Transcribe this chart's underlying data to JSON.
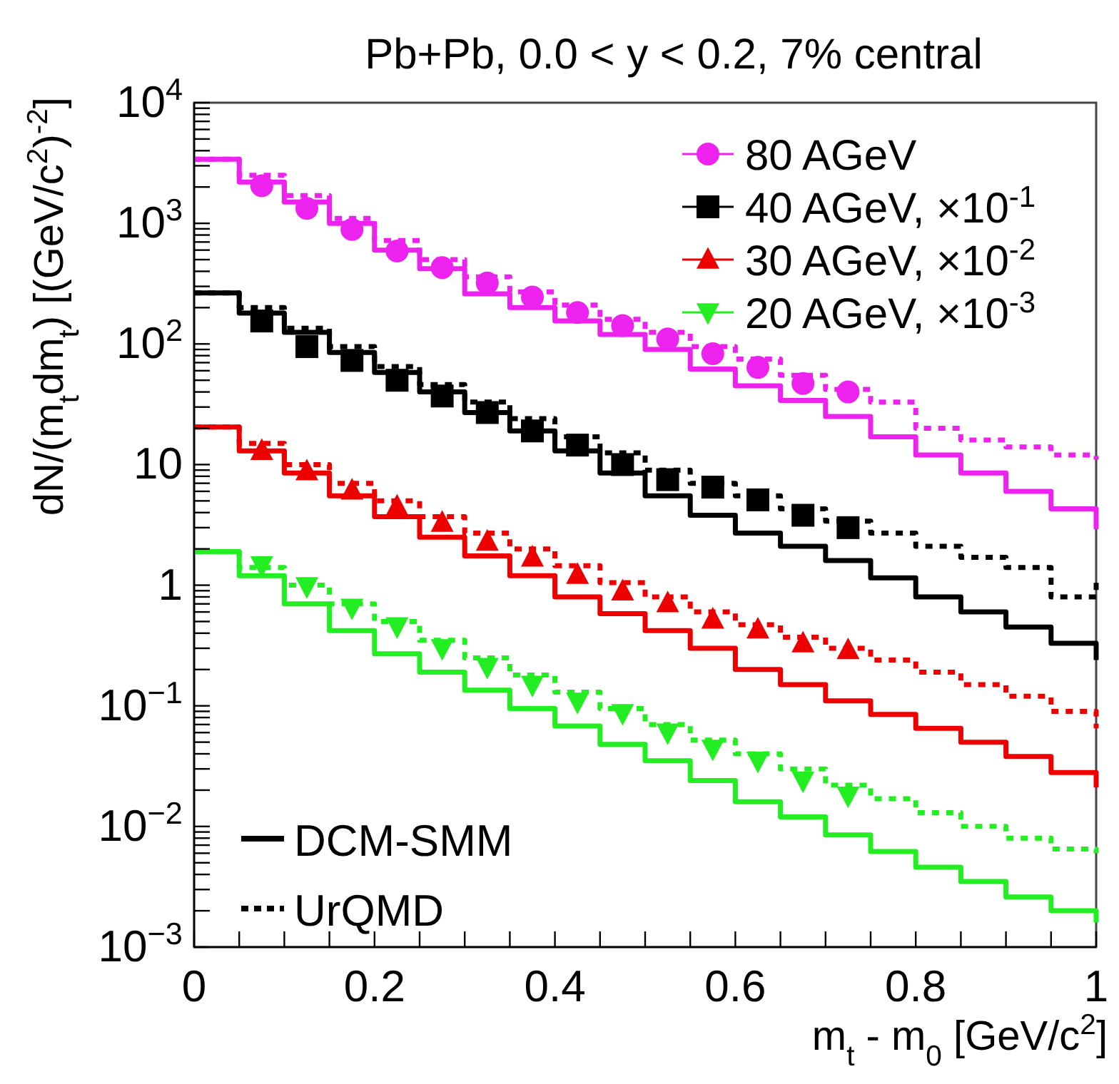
{
  "chart_data": {
    "type": "scatter",
    "title": "Pb+Pb, 0.0 < y < 0.2, 7% central",
    "xlabel": "m$_{t}$ - m$_{0}$ [GeV/c$^{2}$]",
    "ylabel": "dN/(m$_{t}$dm$_{t}$) [(GeV/c$^{2}$)$^{-2}$]",
    "annotations": [
      "DCM-SMM",
      "UrQMD"
    ],
    "log": "y",
    "legend": "top right",
    "grid": false,
    "xlim": [
      0,
      1
    ],
    "xticks": [
      0,
      {
        "value": 0.05,
        "label": null
      },
      {
        "value": 0.1,
        "label": null
      },
      {
        "value": 0.15,
        "label": null
      },
      0.2,
      {
        "value": 0.25,
        "label": null
      },
      {
        "value": 0.3,
        "label": null
      },
      {
        "value": 0.35,
        "label": null
      },
      0.4,
      {
        "value": 0.45,
        "label": null
      },
      {
        "value": 0.5,
        "label": null
      },
      {
        "value": 0.55,
        "label": null
      },
      0.6,
      {
        "value": 0.65,
        "label": null
      },
      {
        "value": 0.7,
        "label": null
      },
      {
        "value": 0.75,
        "label": null
      },
      0.8,
      {
        "value": 0.85,
        "label": null
      },
      {
        "value": 0.9,
        "label": null
      },
      {
        "value": 0.95,
        "label": null
      },
      1
    ],
    "ylim": [
      0.001,
      10000
    ],
    "yticks": [
      {
        "value": 0.001,
        "label": "10$^{−3}$"
      },
      {
        "value": 0.002,
        "label": null
      },
      {
        "value": 0.003,
        "label": null
      },
      {
        "value": 0.004,
        "label": null
      },
      {
        "value": 0.005,
        "label": null
      },
      {
        "value": 0.006,
        "label": null
      },
      {
        "value": 0.007,
        "label": null
      },
      {
        "value": 0.008,
        "label": null
      },
      {
        "value": 0.009,
        "label": null
      },
      {
        "value": 0.01,
        "label": "10$^{−2}$"
      },
      {
        "value": 0.02,
        "label": null
      },
      {
        "value": 0.03,
        "label": null
      },
      {
        "value": 0.04,
        "label": null
      },
      {
        "value": 0.05,
        "label": null
      },
      {
        "value": 0.06,
        "label": null
      },
      {
        "value": 0.07,
        "label": null
      },
      {
        "value": 0.08,
        "label": null
      },
      {
        "value": 0.09,
        "label": null
      },
      {
        "value": 0.1,
        "label": "10$^{−1}$"
      },
      {
        "value": 0.2,
        "label": null
      },
      {
        "value": 0.3,
        "label": null
      },
      {
        "value": 0.4,
        "label": null
      },
      {
        "value": 0.5,
        "label": null
      },
      {
        "value": 0.6,
        "label": null
      },
      {
        "value": 0.7,
        "label": null
      },
      {
        "value": 0.8,
        "label": null
      },
      {
        "value": 0.9,
        "label": null
      },
      1,
      {
        "value": 2,
        "label": null
      },
      {
        "value": 3,
        "label": null
      },
      {
        "value": 4,
        "label": null
      },
      {
        "value": 5,
        "label": null
      },
      {
        "value": 6,
        "label": null
      },
      {
        "value": 7,
        "label": null
      },
      {
        "value": 8,
        "label": null
      },
      {
        "value": 9,
        "label": null
      },
      10,
      {
        "value": 20,
        "label": null
      },
      {
        "value": 30,
        "label": null
      },
      {
        "value": 40,
        "label": null
      },
      {
        "value": 50,
        "label": null
      },
      {
        "value": 60,
        "label": null
      },
      {
        "value": 70,
        "label": null
      },
      {
        "value": 80,
        "label": null
      },
      {
        "value": 90,
        "label": null
      },
      {
        "value": 100,
        "label": "10$^{2}$"
      },
      {
        "value": 200,
        "label": null
      },
      {
        "value": 300,
        "label": null
      },
      {
        "value": 400,
        "label": null
      },
      {
        "value": 500,
        "label": null
      },
      {
        "value": 600,
        "label": null
      },
      {
        "value": 700,
        "label": null
      },
      {
        "value": 800,
        "label": null
      },
      {
        "value": 900,
        "label": null
      },
      {
        "value": 1000,
        "label": "10$^{3}$"
      },
      {
        "value": 2000,
        "label": null
      },
      {
        "value": 3000,
        "label": null
      },
      {
        "value": 4000,
        "label": null
      },
      {
        "value": 5000,
        "label": null
      },
      {
        "value": 6000,
        "label": null
      },
      {
        "value": 7000,
        "label": null
      },
      {
        "value": 8000,
        "label": null
      },
      {
        "value": 9000,
        "label": null
      },
      {
        "value": 10000,
        "label": "10$^{4}$"
      }
    ],
    "series": [
      {
        "type": "step",
        "color": "#ee22ee",
        "line_style": "solid",
        "x": [
          0,
          0.05,
          0.1,
          0.15,
          0.2,
          0.25,
          0.3,
          0.35,
          0.4,
          0.45,
          0.5,
          0.55,
          0.6,
          0.65,
          0.7,
          0.75,
          0.8,
          0.85,
          0.9,
          0.95,
          1
        ],
        "values": [
          3400,
          2200,
          1500,
          1000,
          600,
          420,
          260,
          200,
          155,
          120,
          90,
          62,
          45,
          34,
          25,
          17,
          12,
          8.5,
          6,
          4.3,
          2.9
        ]
      },
      {
        "type": "step",
        "color": "#ee22ee",
        "line_style": "dotted",
        "x": [
          0,
          0.05,
          0.1,
          0.15,
          0.2,
          0.25,
          0.3,
          0.35,
          0.4,
          0.45,
          0.5,
          0.55,
          0.6,
          0.65,
          0.7,
          0.75,
          0.8,
          0.85,
          0.9,
          0.95,
          1
        ],
        "values": [
          3400,
          2500,
          1700,
          1100,
          720,
          500,
          360,
          270,
          210,
          160,
          125,
          95,
          75,
          55,
          42,
          33,
          20,
          16,
          14,
          12,
          11
        ]
      },
      {
        "type": "step",
        "color": "#000000",
        "line_style": "solid",
        "x": [
          0,
          0.05,
          0.1,
          0.15,
          0.2,
          0.25,
          0.3,
          0.35,
          0.4,
          0.45,
          0.5,
          0.55,
          0.6,
          0.65,
          0.7,
          0.75,
          0.8,
          0.85,
          0.9,
          0.95,
          1
        ],
        "values": [
          265,
          180,
          125,
          85,
          58,
          40,
          27,
          19,
          13,
          8.5,
          5.5,
          3.8,
          2.7,
          2.1,
          1.6,
          1.15,
          0.8,
          0.6,
          0.45,
          0.33,
          0.24
        ]
      },
      {
        "type": "step",
        "color": "#000000",
        "line_style": "dotted",
        "x": [
          0,
          0.05,
          0.1,
          0.15,
          0.2,
          0.25,
          0.3,
          0.35,
          0.4,
          0.45,
          0.5,
          0.55,
          0.6,
          0.65,
          0.7,
          0.75,
          0.8,
          0.85,
          0.9,
          0.95,
          1
        ],
        "values": [
          265,
          200,
          135,
          95,
          65,
          46,
          33,
          24,
          17,
          12.5,
          9,
          7,
          5.5,
          4.3,
          3.4,
          2.7,
          2.1,
          1.7,
          1.4,
          0.8,
          1.1
        ]
      },
      {
        "type": "step",
        "color": "#ee0000",
        "line_style": "solid",
        "x": [
          0,
          0.05,
          0.1,
          0.15,
          0.2,
          0.25,
          0.3,
          0.35,
          0.4,
          0.45,
          0.5,
          0.55,
          0.6,
          0.65,
          0.7,
          0.75,
          0.8,
          0.85,
          0.9,
          0.95,
          1
        ],
        "values": [
          20.5,
          13,
          8.5,
          5.5,
          3.7,
          2.5,
          1.75,
          1.2,
          0.8,
          0.58,
          0.42,
          0.3,
          0.2,
          0.15,
          0.11,
          0.085,
          0.065,
          0.05,
          0.038,
          0.028,
          0.021
        ]
      },
      {
        "type": "step",
        "color": "#ee0000",
        "line_style": "dotted",
        "x": [
          0,
          0.05,
          0.1,
          0.15,
          0.2,
          0.25,
          0.3,
          0.35,
          0.4,
          0.45,
          0.5,
          0.55,
          0.6,
          0.65,
          0.7,
          0.75,
          0.8,
          0.85,
          0.9,
          0.95,
          1
        ],
        "values": [
          20.5,
          15,
          10,
          7,
          5,
          3.7,
          2.7,
          2,
          1.45,
          1.05,
          0.8,
          0.6,
          0.47,
          0.37,
          0.3,
          0.24,
          0.19,
          0.15,
          0.12,
          0.09,
          0.065
        ]
      },
      {
        "type": "step",
        "color": "#22ee22",
        "line_style": "solid",
        "x": [
          0,
          0.05,
          0.1,
          0.15,
          0.2,
          0.25,
          0.3,
          0.35,
          0.4,
          0.45,
          0.5,
          0.55,
          0.6,
          0.65,
          0.7,
          0.75,
          0.8,
          0.85,
          0.9,
          0.95,
          1
        ],
        "values": [
          1.9,
          1.2,
          0.7,
          0.42,
          0.27,
          0.19,
          0.135,
          0.095,
          0.068,
          0.048,
          0.035,
          0.024,
          0.016,
          0.012,
          0.0085,
          0.0062,
          0.0046,
          0.0035,
          0.0026,
          0.002,
          0.0016
        ]
      },
      {
        "type": "step",
        "color": "#22ee22",
        "line_style": "dotted",
        "x": [
          0,
          0.05,
          0.1,
          0.15,
          0.2,
          0.25,
          0.3,
          0.35,
          0.4,
          0.45,
          0.5,
          0.55,
          0.6,
          0.65,
          0.7,
          0.75,
          0.8,
          0.85,
          0.9,
          0.95,
          1
        ],
        "values": [
          1.9,
          1.4,
          1.0,
          0.7,
          0.5,
          0.35,
          0.25,
          0.18,
          0.13,
          0.095,
          0.07,
          0.052,
          0.04,
          0.03,
          0.022,
          0.017,
          0.013,
          0.01,
          0.008,
          0.0065,
          0.006
        ]
      },
      {
        "name": "80 AGeV",
        "color": "#ee22ee",
        "marker": "circle",
        "x": [
          0.075,
          0.125,
          0.175,
          0.225,
          0.275,
          0.325,
          0.375,
          0.425,
          0.475,
          0.525,
          0.575,
          0.625,
          0.675,
          0.725
        ],
        "values": [
          2050,
          1330,
          890,
          590,
          430,
          320,
          245,
          182,
          142,
          110,
          83,
          64,
          47,
          40
        ]
      },
      {
        "name": "40 AGeV, ×10$^{-1}$",
        "color": "#000000",
        "marker": "square",
        "x": [
          0.075,
          0.125,
          0.175,
          0.225,
          0.275,
          0.325,
          0.375,
          0.425,
          0.475,
          0.525,
          0.575,
          0.625,
          0.675,
          0.725
        ],
        "values": [
          155,
          95,
          73,
          50,
          37,
          27,
          19,
          14.5,
          10,
          7.5,
          6.5,
          5.1,
          3.8,
          3.0
        ]
      },
      {
        "name": "30 AGeV, ×10$^{-2}$",
        "color": "#ee0000",
        "marker": "triangle",
        "x": [
          0.075,
          0.125,
          0.175,
          0.225,
          0.275,
          0.325,
          0.375,
          0.425,
          0.475,
          0.525,
          0.575,
          0.625,
          0.675,
          0.725
        ],
        "values": [
          13,
          8.8,
          6.1,
          4.5,
          3.3,
          2.3,
          1.7,
          1.22,
          0.89,
          0.71,
          0.52,
          0.43,
          0.33,
          0.29
        ]
      },
      {
        "name": "20 AGeV, ×10$^{-3}$",
        "color": "#22ee22",
        "marker": "triangle-down",
        "x": [
          0.075,
          0.125,
          0.175,
          0.225,
          0.275,
          0.325,
          0.375,
          0.425,
          0.475,
          0.525,
          0.575,
          0.625,
          0.675,
          0.725
        ],
        "values": [
          1.46,
          0.98,
          0.65,
          0.455,
          0.3,
          0.21,
          0.149,
          0.108,
          0.087,
          0.06,
          0.044,
          0.035,
          0.024,
          0.018
        ]
      }
    ]
  }
}
